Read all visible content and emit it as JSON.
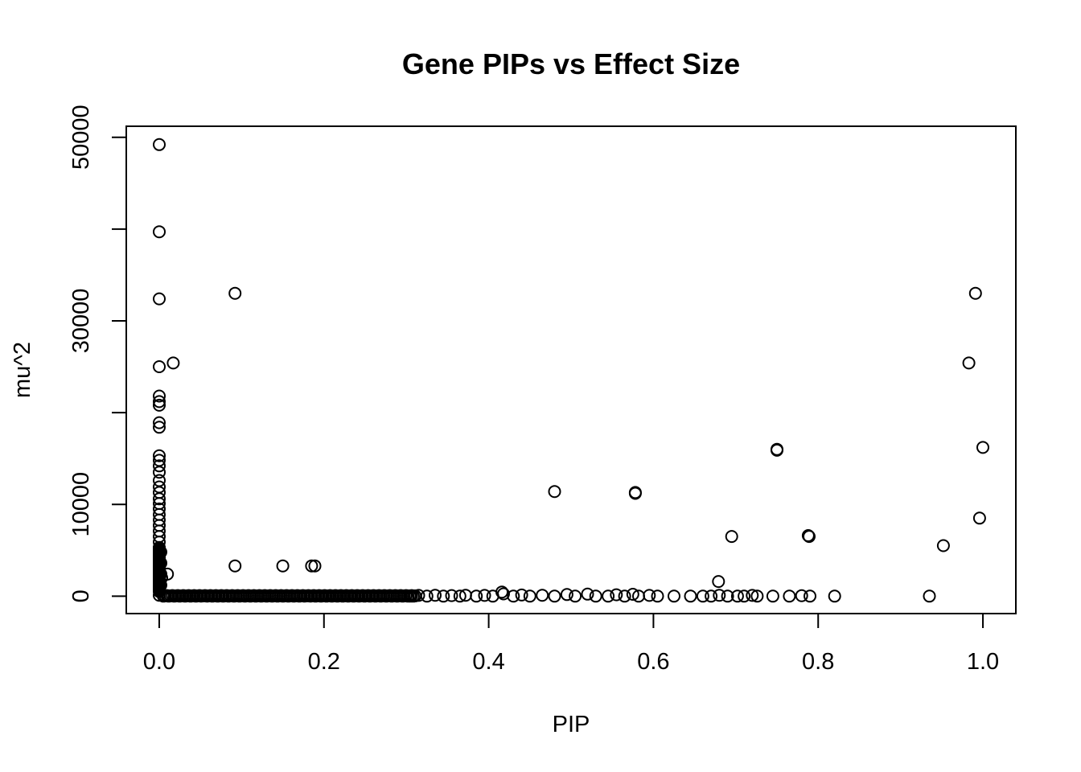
{
  "chart_data": {
    "type": "scatter",
    "title": "Gene PIPs vs Effect Size",
    "xlabel": "PIP",
    "ylabel": "mu^2",
    "xlim": [
      -0.04,
      1.04
    ],
    "ylim": [
      -1900,
      51200
    ],
    "x_ticks": [
      0.0,
      0.2,
      0.4,
      0.6,
      0.8,
      1.0
    ],
    "x_tick_labels": [
      "0.0",
      "0.2",
      "0.4",
      "0.6",
      "0.8",
      "1.0"
    ],
    "y_ticks": [
      0,
      10000,
      20000,
      30000,
      40000,
      50000
    ],
    "y_tick_labels": [
      "0",
      "10000",
      "",
      "30000",
      "",
      "50000"
    ],
    "grid": false,
    "marker": "open-circle",
    "series": [
      {
        "name": "genes",
        "points": [
          [
            0.0,
            49200
          ],
          [
            0.0,
            39700
          ],
          [
            0.0,
            32400
          ],
          [
            0.0,
            25000
          ],
          [
            0.0,
            21800
          ],
          [
            0.0,
            21200
          ],
          [
            0.0,
            20800
          ],
          [
            0.0,
            18900
          ],
          [
            0.0,
            18400
          ],
          [
            0.0,
            15300
          ],
          [
            0.0,
            14800
          ],
          [
            0.0,
            14200
          ],
          [
            0.0,
            13500
          ],
          [
            0.0,
            12600
          ],
          [
            0.0,
            11900
          ],
          [
            0.0,
            11300
          ],
          [
            0.0,
            10600
          ],
          [
            0.0,
            10100
          ],
          [
            0.0,
            9500
          ],
          [
            0.0,
            8900
          ],
          [
            0.0,
            8300
          ],
          [
            0.0,
            7700
          ],
          [
            0.0,
            7100
          ],
          [
            0.0,
            6500
          ],
          [
            0.0,
            5900
          ],
          [
            0.0,
            5300
          ],
          [
            0.0,
            4700
          ],
          [
            0.0,
            4100
          ],
          [
            0.0,
            3500
          ],
          [
            0.0,
            2900
          ],
          [
            0.0,
            2300
          ],
          [
            0.0,
            1700
          ],
          [
            0.0,
            1100
          ],
          [
            0.0,
            500
          ],
          [
            0.0,
            100
          ],
          [
            0.002,
            4800
          ],
          [
            0.002,
            3600
          ],
          [
            0.002,
            2400
          ],
          [
            0.002,
            1200
          ],
          [
            0.003,
            2000
          ],
          [
            0.01,
            2400
          ],
          [
            0.017,
            25400
          ],
          [
            0.092,
            33000
          ],
          [
            0.092,
            3300
          ],
          [
            0.15,
            3300
          ],
          [
            0.185,
            3300
          ],
          [
            0.189,
            3300
          ],
          [
            0.48,
            11400
          ],
          [
            0.578,
            11300
          ],
          [
            0.578,
            11200
          ],
          [
            0.679,
            1600
          ],
          [
            0.695,
            6500
          ],
          [
            0.75,
            15900
          ],
          [
            0.75,
            16000
          ],
          [
            0.788,
            6600
          ],
          [
            0.789,
            6500
          ],
          [
            0.952,
            5500
          ],
          [
            0.983,
            25400
          ],
          [
            0.991,
            33000
          ],
          [
            0.996,
            8500
          ],
          [
            1.0,
            16200
          ],
          [
            0.935,
            0
          ],
          [
            0.82,
            0
          ],
          [
            0.79,
            0
          ],
          [
            0.78,
            50
          ],
          [
            0.765,
            0
          ],
          [
            0.745,
            0
          ],
          [
            0.726,
            0
          ],
          [
            0.72,
            80
          ],
          [
            0.71,
            0
          ],
          [
            0.702,
            0
          ],
          [
            0.69,
            0
          ],
          [
            0.68,
            100
          ],
          [
            0.67,
            0
          ],
          [
            0.66,
            0
          ],
          [
            0.645,
            0
          ],
          [
            0.625,
            0
          ],
          [
            0.605,
            0
          ],
          [
            0.595,
            80
          ],
          [
            0.582,
            0
          ],
          [
            0.575,
            200
          ],
          [
            0.565,
            0
          ],
          [
            0.555,
            150
          ],
          [
            0.545,
            0
          ],
          [
            0.53,
            0
          ],
          [
            0.52,
            220
          ],
          [
            0.505,
            0
          ],
          [
            0.495,
            180
          ],
          [
            0.48,
            0
          ],
          [
            0.465,
            100
          ],
          [
            0.45,
            0
          ],
          [
            0.44,
            120
          ],
          [
            0.43,
            0
          ],
          [
            0.418,
            250
          ],
          [
            0.416,
            450
          ],
          [
            0.405,
            0
          ],
          [
            0.395,
            80
          ],
          [
            0.385,
            0
          ],
          [
            0.372,
            100
          ],
          [
            0.365,
            0
          ],
          [
            0.355,
            60
          ],
          [
            0.345,
            0
          ],
          [
            0.335,
            100
          ],
          [
            0.325,
            0
          ],
          [
            0.315,
            80
          ],
          [
            0.305,
            0
          ]
        ]
      }
    ]
  }
}
